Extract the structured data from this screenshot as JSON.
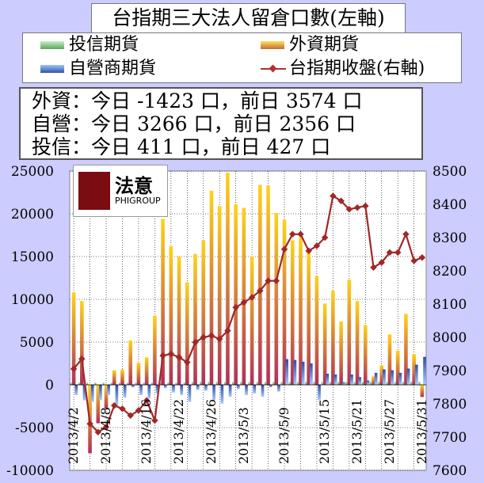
{
  "title": "台指期三大法人留倉口數(左軸)",
  "legend": [
    {
      "label": "投信期貨",
      "color": "#7fbf7f"
    },
    {
      "label": "外資期貨",
      "color": "#f2b800"
    },
    {
      "label": "自營商期貨",
      "color": "#3f6fbf"
    },
    {
      "label": "台指期收盤(右軸)",
      "color": "#b03030"
    }
  ],
  "summary": [
    "外資：今日 -1423 口，前日 3574 口",
    "自營：今日 3266 口，前日 2356 口",
    "投信：今日 411 口，前日 427 口"
  ],
  "logo": {
    "chinese": "法意",
    "english": "PHIGROUP"
  },
  "chart_data": {
    "type": "bar",
    "left_axis": {
      "min": -10000,
      "max": 25000,
      "ticks": [
        "-10000",
        "-5000",
        "0",
        "5000",
        "10000",
        "15000",
        "20000",
        "25000"
      ]
    },
    "right_axis": {
      "min": 7600,
      "max": 8500,
      "ticks": [
        "7600",
        "7700",
        "7800",
        "7900",
        "8000",
        "8100",
        "8200",
        "8300",
        "8400",
        "8500"
      ]
    },
    "x_labels": [
      "2013/4/2",
      "2013/4/8",
      "2013/4/16",
      "2013/4/22",
      "2013/4/26",
      "2013/5/3",
      "2013/5/9",
      "2013/5/15",
      "2013/5/21",
      "2013/5/27",
      "2013/5/31"
    ],
    "series": [
      {
        "name": "外資期貨",
        "values": [
          10800,
          9800,
          -8000,
          -4500,
          -2800,
          1700,
          1800,
          5200,
          2600,
          3200,
          8100,
          19400,
          16200,
          15000,
          12000,
          15300,
          16900,
          22700,
          20900,
          24800,
          21100,
          20700,
          15000,
          23400,
          23300,
          20100,
          19300,
          16900,
          17200,
          15600,
          12700,
          9500,
          11000,
          7400,
          12300,
          9800,
          7000,
          1000,
          2300,
          5900,
          4000,
          8300,
          3574,
          -1423
        ]
      },
      {
        "name": "自營商期貨",
        "values": [
          -1200,
          -1800,
          -2000,
          -1800,
          -1200,
          -2400,
          -1500,
          -300,
          -1200,
          -1600,
          -1000,
          -400,
          -900,
          -1200,
          -2000,
          -600,
          -700,
          -1800,
          -2200,
          -1400,
          -500,
          -1200,
          -1000,
          -1400,
          -300,
          -800,
          3000,
          2900,
          2700,
          2500,
          -1800,
          1300,
          1200,
          300,
          1200,
          900,
          500,
          1400,
          1800,
          1700,
          1400,
          1900,
          2356,
          3266
        ]
      },
      {
        "name": "投信期貨",
        "values": [
          300,
          300,
          300,
          300,
          300,
          300,
          300,
          300,
          300,
          300,
          300,
          300,
          300,
          300,
          300,
          400,
          400,
          400,
          400,
          400,
          400,
          400,
          400,
          400,
          400,
          400,
          400,
          400,
          400,
          400,
          400,
          400,
          400,
          400,
          400,
          400,
          400,
          400,
          400,
          400,
          400,
          400,
          427,
          411
        ]
      },
      {
        "name": "台指期收盤(右軸)",
        "values": [
          7905,
          7935,
          7740,
          7715,
          7730,
          7795,
          7785,
          7765,
          7780,
          7810,
          7750,
          7945,
          7950,
          7940,
          7925,
          7985,
          8000,
          8005,
          7995,
          8020,
          8090,
          8105,
          8120,
          8140,
          8170,
          8170,
          8265,
          8310,
          8310,
          8260,
          8275,
          8300,
          8425,
          8410,
          8385,
          8390,
          8395,
          8210,
          8225,
          8255,
          8255,
          8310,
          8230,
          8240
        ]
      }
    ]
  }
}
